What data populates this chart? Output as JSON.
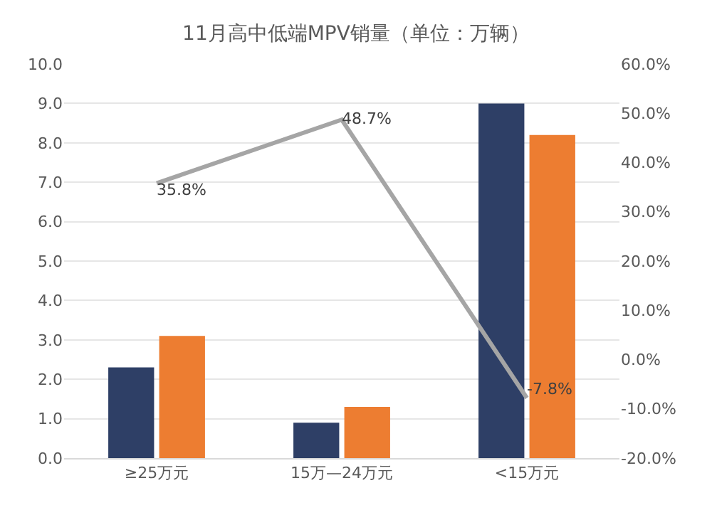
{
  "chart_data": {
    "type": "bar",
    "title": "11月高中低端MPV销量（单位：万辆）",
    "categories": [
      "≥25万元",
      "15万—24万元",
      "<15万元"
    ],
    "series": [
      {
        "color": "#2e3f66",
        "values": [
          2.3,
          0.9,
          9.0
        ]
      },
      {
        "color": "#ed7d31",
        "values": [
          3.1,
          1.3,
          8.2
        ]
      },
      {
        "type": "line",
        "axis": "y2",
        "color": "#a5a5a5",
        "values": [
          35.8,
          48.7,
          -7.8
        ],
        "value_labels": [
          "35.8%",
          "48.7%",
          "-7.8%"
        ]
      }
    ],
    "ylim": [
      0,
      10
    ],
    "yticks": [
      {
        "value": 0,
        "label": "0.0"
      },
      {
        "value": 1,
        "label": "1.0"
      },
      {
        "value": 2,
        "label": "2.0"
      },
      {
        "value": 3,
        "label": "3.0"
      },
      {
        "value": 4,
        "label": "4.0"
      },
      {
        "value": 5,
        "label": "5.0"
      },
      {
        "value": 6,
        "label": "6.0"
      },
      {
        "value": 7,
        "label": "7.0"
      },
      {
        "value": 8,
        "label": "8.0"
      },
      {
        "value": 9,
        "label": "9.0"
      },
      {
        "value": 10,
        "label": "10.0"
      }
    ],
    "y2lim": [
      -20,
      60
    ],
    "y2ticks": [
      {
        "value": -20,
        "label": "-20.0%"
      },
      {
        "value": -10,
        "label": "-10.0%"
      },
      {
        "value": 0,
        "label": "0.0%"
      },
      {
        "value": 10,
        "label": "10.0%"
      },
      {
        "value": 20,
        "label": "20.0%"
      },
      {
        "value": 30,
        "label": "30.0%"
      },
      {
        "value": 40,
        "label": "40.0%"
      },
      {
        "value": 50,
        "label": "50.0%"
      },
      {
        "value": 60,
        "label": "60.0%"
      }
    ],
    "grid": "y",
    "legend": false,
    "marker": "none"
  }
}
